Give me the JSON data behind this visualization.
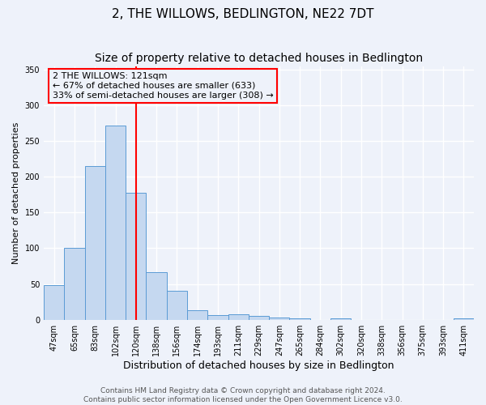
{
  "title": "2, THE WILLOWS, BEDLINGTON, NE22 7DT",
  "subtitle": "Size of property relative to detached houses in Bedlington",
  "xlabel": "Distribution of detached houses by size in Bedlington",
  "ylabel": "Number of detached properties",
  "bar_labels": [
    "47sqm",
    "65sqm",
    "83sqm",
    "102sqm",
    "120sqm",
    "138sqm",
    "156sqm",
    "174sqm",
    "193sqm",
    "211sqm",
    "229sqm",
    "247sqm",
    "265sqm",
    "284sqm",
    "302sqm",
    "320sqm",
    "338sqm",
    "356sqm",
    "375sqm",
    "393sqm",
    "411sqm"
  ],
  "bar_values": [
    48,
    100,
    215,
    272,
    178,
    67,
    40,
    13,
    7,
    8,
    5,
    3,
    2,
    0,
    2,
    0,
    0,
    0,
    0,
    0,
    2
  ],
  "bar_color": "#c5d8f0",
  "bar_edge_color": "#5b9bd5",
  "vline_x_index": 4,
  "vline_color": "red",
  "annotation_title": "2 THE WILLOWS: 121sqm",
  "annotation_line1": "← 67% of detached houses are smaller (633)",
  "annotation_line2": "33% of semi-detached houses are larger (308) →",
  "annotation_box_color": "red",
  "ylim": [
    0,
    355
  ],
  "yticks": [
    0,
    50,
    100,
    150,
    200,
    250,
    300,
    350
  ],
  "background_color": "#eef2fa",
  "grid_color": "#ffffff",
  "footer_line1": "Contains HM Land Registry data © Crown copyright and database right 2024.",
  "footer_line2": "Contains public sector information licensed under the Open Government Licence v3.0.",
  "title_fontsize": 11,
  "xlabel_fontsize": 9,
  "ylabel_fontsize": 8,
  "tick_fontsize": 7,
  "annotation_fontsize": 8,
  "footer_fontsize": 6.5
}
